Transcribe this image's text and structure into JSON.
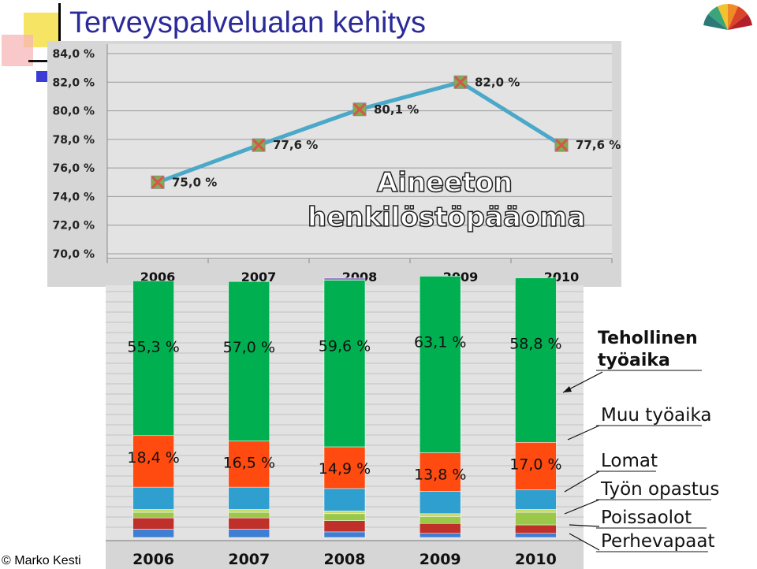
{
  "slide": {
    "title": "Terveyspalvelualan kehitys",
    "footer": "© Marko Kesti"
  },
  "colors": {
    "title": "#2a2a9a",
    "line": "#4aa8c8",
    "marker": "#d9534f",
    "green": "#00b050",
    "orange": "#ff4a10",
    "teal": "#2e9fcf",
    "lightgreen": "#9bc84a",
    "red": "#c0302b",
    "blue": "#3f7fd1"
  },
  "chart_data": [
    {
      "type": "line",
      "title": "Aineeton henkilöstöpääoma",
      "categories": [
        "2006",
        "2007",
        "2008",
        "2009",
        "2010"
      ],
      "values": [
        75.0,
        77.6,
        80.1,
        82.0,
        77.6
      ],
      "data_labels": [
        "75,0 %",
        "77,6 %",
        "80,1 %",
        "82,0 %",
        "77,6 %"
      ],
      "ylim": [
        70,
        84
      ],
      "yticks": [
        70,
        72,
        74,
        76,
        78,
        80,
        82,
        84
      ],
      "ytick_labels": [
        "70,0 %",
        "72,0 %",
        "74,0 %",
        "76,0 %",
        "78,0 %",
        "80,0 %",
        "82,0 %",
        "84,0 %"
      ],
      "grid": true
    },
    {
      "type": "bar",
      "stacked": true,
      "categories": [
        "2006",
        "2007",
        "2008",
        "2009",
        "2010"
      ],
      "series": [
        {
          "name": "Perhevapaat",
          "values": [
            3.0,
            3.0,
            2.0,
            1.5,
            1.5
          ]
        },
        {
          "name": "Poissaolot",
          "values": [
            4.0,
            4.0,
            4.0,
            3.5,
            3.0
          ]
        },
        {
          "name": "Työn opastus",
          "values": [
            2.0,
            2.0,
            2.5,
            2.5,
            4.5
          ]
        },
        {
          "name": "",
          "values": [
            1.0,
            1.0,
            1.0,
            1.0,
            1.0
          ]
        },
        {
          "name": "Lomat",
          "values": [
            8.0,
            8.0,
            8.0,
            8.0,
            7.0
          ]
        },
        {
          "name": "Muu työaika",
          "values": [
            18.4,
            16.5,
            14.9,
            13.8,
            17.0
          ],
          "labels": [
            "18,4 %",
            "16,5 %",
            "14,9 %",
            "13,8 %",
            "17,0 %"
          ]
        },
        {
          "name": "Tehollinen työaika",
          "values": [
            55.3,
            57.0,
            59.6,
            63.1,
            58.8
          ],
          "labels": [
            "55,3 %",
            "57,0 %",
            "59,6 %",
            "63,1 %",
            "58,8 %"
          ]
        },
        {
          "name": "",
          "values": [
            0,
            0,
            0.8,
            0,
            0
          ]
        }
      ],
      "legend": [
        {
          "text": "Tehollinen työaika",
          "lines": [
            "Tehollinen",
            "työaika"
          ]
        },
        {
          "text": "Muu työaika"
        },
        {
          "text": "Lomat"
        },
        {
          "text": "Työn opastus"
        },
        {
          "text": "Poissaolot"
        },
        {
          "text": "Perhevapaat"
        }
      ],
      "legend_placement": "right"
    }
  ]
}
